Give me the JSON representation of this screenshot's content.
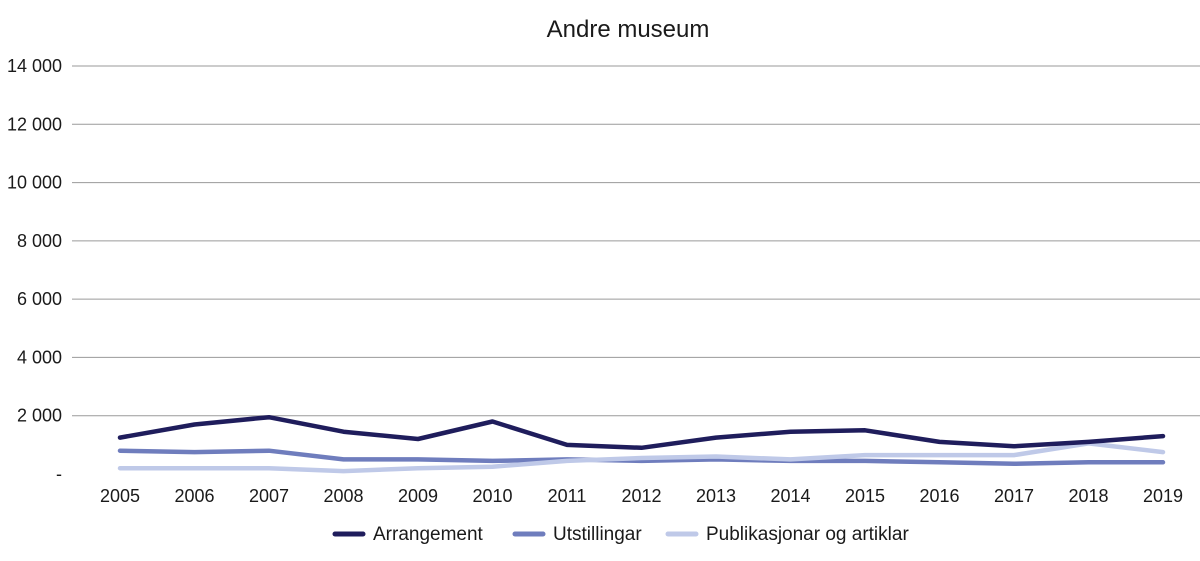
{
  "chart_data": {
    "type": "line",
    "title": "Andre museum",
    "xlabel": "",
    "ylabel": "",
    "categories": [
      "2005",
      "2006",
      "2007",
      "2008",
      "2009",
      "2010",
      "2011",
      "2012",
      "2013",
      "2014",
      "2015",
      "2016",
      "2017",
      "2018",
      "2019"
    ],
    "y_ticks": [
      {
        "value": 0,
        "label": "-"
      },
      {
        "value": 2000,
        "label": "2 000"
      },
      {
        "value": 4000,
        "label": "4 000"
      },
      {
        "value": 6000,
        "label": "6 000"
      },
      {
        "value": 8000,
        "label": "8 000"
      },
      {
        "value": 10000,
        "label": "10 000"
      },
      {
        "value": 12000,
        "label": "12 000"
      },
      {
        "value": 14000,
        "label": "14 000"
      }
    ],
    "ylim": [
      0,
      14000
    ],
    "grid": true,
    "legend_position": "bottom",
    "series": [
      {
        "name": "Arrangement",
        "color": "#1f1d5c",
        "values": [
          1250,
          1700,
          1950,
          1450,
          1200,
          1800,
          1000,
          900,
          1250,
          1450,
          1500,
          1100,
          950,
          1100,
          1300
        ]
      },
      {
        "name": "Utstillingar",
        "color": "#6f7dbd",
        "values": [
          800,
          750,
          800,
          500,
          500,
          450,
          500,
          450,
          500,
          450,
          450,
          400,
          350,
          400,
          400
        ]
      },
      {
        "name": "Publikasjonar og artiklar",
        "color": "#bfc9e8",
        "values": [
          200,
          200,
          200,
          100,
          200,
          250,
          450,
          550,
          600,
          500,
          650,
          650,
          650,
          1050,
          750
        ]
      }
    ]
  }
}
